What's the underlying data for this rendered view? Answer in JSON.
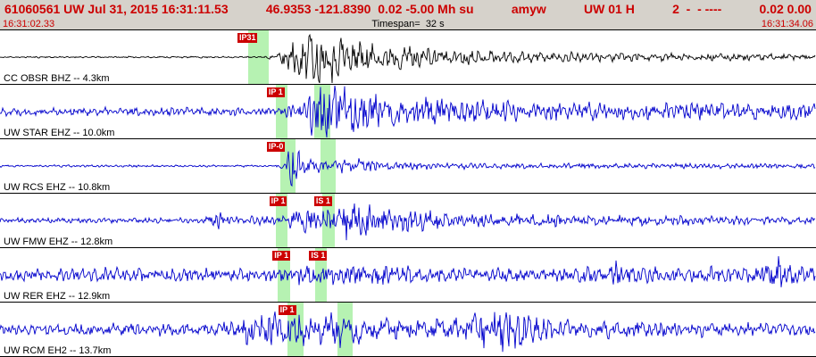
{
  "header": {
    "segments": [
      "61060561 UW Jul 31, 2015 16:31:11.53",
      "46.9353 -121.8390  0.02 -5.00 Mh su",
      "amyw",
      "UW 01 H",
      "2  -  - ----",
      "0.02 0.00"
    ],
    "text_color": "#cc0000"
  },
  "timebar": {
    "start": "16:31:02.33",
    "timespan": "Timespan=  32 s",
    "end": "16:31:34.06"
  },
  "chart_data": {
    "type": "line",
    "title": "Seismogram traces, 32 s window starting 16:31:02.33",
    "colors": {
      "trace_default": "#0000cc",
      "trace_first": "#000000",
      "pick_box": "#cc0000",
      "pick_window": "#b6f2b2"
    },
    "traces": [
      {
        "id": "obsr",
        "label": "CC OBSR BHZ -- 4.3km",
        "color": "#000000",
        "seed": 11,
        "f1": 0.9,
        "f2": 0.34,
        "picks": [
          {
            "label": "IP31",
            "x": 0.291
          }
        ],
        "bands": [
          [
            0.304,
            0.329
          ]
        ],
        "envelope": [
          [
            0,
            0.6
          ],
          [
            0.32,
            0.6
          ],
          [
            0.34,
            2
          ],
          [
            0.355,
            14
          ],
          [
            0.375,
            21
          ],
          [
            0.41,
            17
          ],
          [
            0.46,
            10
          ],
          [
            0.55,
            6
          ],
          [
            0.65,
            4
          ],
          [
            0.8,
            3
          ],
          [
            1,
            2
          ]
        ]
      },
      {
        "id": "star",
        "label": "UW STAR EHZ -- 10.0km",
        "color": "#0000cc",
        "seed": 22,
        "f1": 1.1,
        "f2": 0.42,
        "picks": [
          {
            "label": "IP 1",
            "x": 0.327
          }
        ],
        "bands": [
          [
            0.338,
            0.352
          ],
          [
            0.385,
            0.405
          ]
        ],
        "envelope": [
          [
            0,
            3
          ],
          [
            0.33,
            3
          ],
          [
            0.35,
            5
          ],
          [
            0.375,
            8
          ],
          [
            0.388,
            26
          ],
          [
            0.41,
            21
          ],
          [
            0.45,
            14
          ],
          [
            0.55,
            10
          ],
          [
            0.7,
            7
          ],
          [
            1,
            6
          ]
        ]
      },
      {
        "id": "rcs",
        "label": "UW RCS EHZ -- 10.8km",
        "color": "#0000cc",
        "seed": 33,
        "f1": 1.2,
        "f2": 0.46,
        "picks": [
          {
            "label": "IP-0",
            "x": 0.327
          }
        ],
        "bands": [
          [
            0.344,
            0.362
          ],
          [
            0.393,
            0.411
          ]
        ],
        "envelope": [
          [
            0,
            0.8
          ],
          [
            0.34,
            0.8
          ],
          [
            0.35,
            3
          ],
          [
            0.358,
            22
          ],
          [
            0.37,
            12
          ],
          [
            0.385,
            5
          ],
          [
            0.41,
            3
          ],
          [
            0.425,
            8
          ],
          [
            0.445,
            6
          ],
          [
            0.47,
            3
          ],
          [
            0.6,
            2
          ],
          [
            1,
            1.8
          ]
        ]
      },
      {
        "id": "fmw",
        "label": "UW FMW EHZ -- 12.8km",
        "color": "#0000cc",
        "seed": 44,
        "f1": 1.1,
        "f2": 0.38,
        "picks": [
          {
            "label": "IP 1",
            "x": 0.33
          },
          {
            "label": "IS 1",
            "x": 0.385
          }
        ],
        "bands": [
          [
            0.338,
            0.352
          ],
          [
            0.395,
            0.41
          ]
        ],
        "envelope": [
          [
            0,
            2
          ],
          [
            0.25,
            2
          ],
          [
            0.268,
            7
          ],
          [
            0.285,
            3
          ],
          [
            0.35,
            3
          ],
          [
            0.365,
            10
          ],
          [
            0.4,
            8
          ],
          [
            0.425,
            14
          ],
          [
            0.46,
            12
          ],
          [
            0.52,
            7
          ],
          [
            0.6,
            5
          ],
          [
            0.75,
            4
          ],
          [
            1,
            3
          ]
        ]
      },
      {
        "id": "rer",
        "label": "UW RER EHZ -- 12.9km",
        "color": "#0000cc",
        "seed": 55,
        "f1": 1.0,
        "f2": 0.5,
        "picks": [
          {
            "label": "IP 1",
            "x": 0.334
          },
          {
            "label": "IS 1",
            "x": 0.379
          }
        ],
        "bands": [
          [
            0.34,
            0.356
          ],
          [
            0.386,
            0.4
          ]
        ],
        "envelope": [
          [
            0,
            5
          ],
          [
            0.34,
            5
          ],
          [
            0.38,
            9
          ],
          [
            0.45,
            8
          ],
          [
            0.55,
            6
          ],
          [
            0.65,
            5
          ],
          [
            0.748,
            6
          ],
          [
            0.755,
            18
          ],
          [
            0.762,
            6
          ],
          [
            0.85,
            6
          ],
          [
            0.93,
            6
          ],
          [
            0.95,
            15
          ],
          [
            0.965,
            9
          ],
          [
            1,
            7
          ]
        ]
      },
      {
        "id": "rcm",
        "label": "UW RCM EH2 -- 13.7km",
        "color": "#0000cc",
        "seed": 66,
        "f1": 0.9,
        "f2": 0.31,
        "picks": [
          {
            "label": "IP 1",
            "x": 0.341
          }
        ],
        "bands": [
          [
            0.352,
            0.372
          ],
          [
            0.414,
            0.432
          ]
        ],
        "envelope": [
          [
            0,
            4
          ],
          [
            0.27,
            5
          ],
          [
            0.31,
            12
          ],
          [
            0.36,
            14
          ],
          [
            0.42,
            12
          ],
          [
            0.47,
            8
          ],
          [
            0.52,
            6
          ],
          [
            0.57,
            10
          ],
          [
            0.6,
            16
          ],
          [
            0.63,
            18
          ],
          [
            0.66,
            12
          ],
          [
            0.7,
            7
          ],
          [
            0.8,
            6
          ],
          [
            0.9,
            5
          ],
          [
            1,
            5
          ]
        ]
      }
    ]
  }
}
